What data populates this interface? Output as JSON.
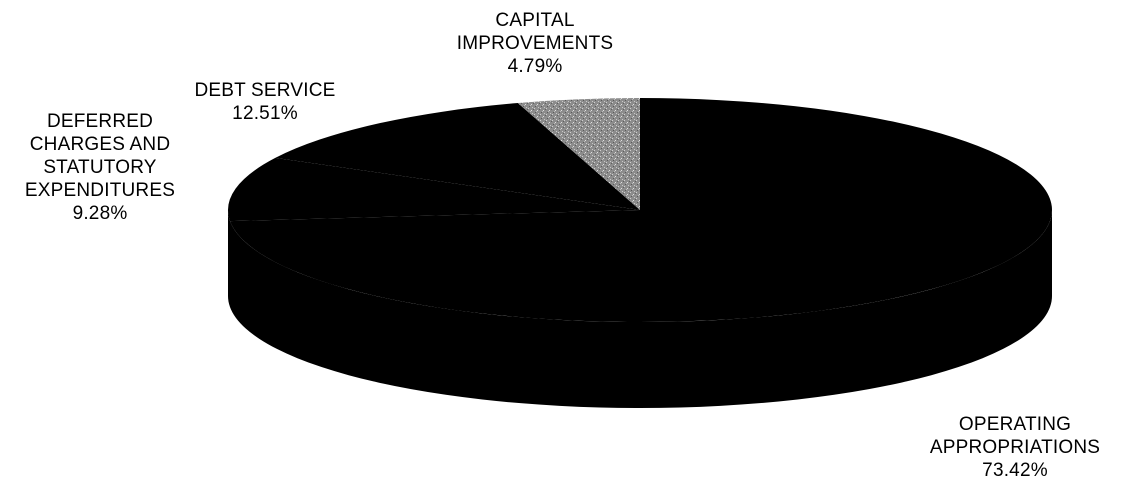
{
  "chart_data": {
    "type": "pie",
    "title": "",
    "style": "3d-flat",
    "categories": [
      "OPERATING APPROPRIATIONS",
      "DEFERRED CHARGES AND STATUTORY EXPENDITURES",
      "DEBT SERVICE",
      "CAPITAL IMPROVEMENTS"
    ],
    "values": [
      73.42,
      9.28,
      12.51,
      4.79
    ],
    "colors": {
      "OPERATING APPROPRIATIONS": "#000000",
      "DEFERRED CHARGES AND STATUTORY EXPENDITURES": "#000000",
      "DEBT SERVICE": "#000000",
      "CAPITAL IMPROVEMENTS": "#9a9a9a"
    },
    "labels": {
      "capital": {
        "lines": [
          "CAPITAL",
          "IMPROVEMENTS"
        ],
        "pct": "4.79%"
      },
      "debt": {
        "lines": [
          "DEBT SERVICE"
        ],
        "pct": "12.51%"
      },
      "deferred": {
        "lines": [
          "DEFERRED",
          "CHARGES AND",
          "STATUTORY",
          "EXPENDITURES"
        ],
        "pct": "9.28%"
      },
      "operating": {
        "lines": [
          "OPERATING",
          "APPROPRIATIONS"
        ],
        "pct": "73.42%"
      }
    },
    "legend": "none"
  }
}
